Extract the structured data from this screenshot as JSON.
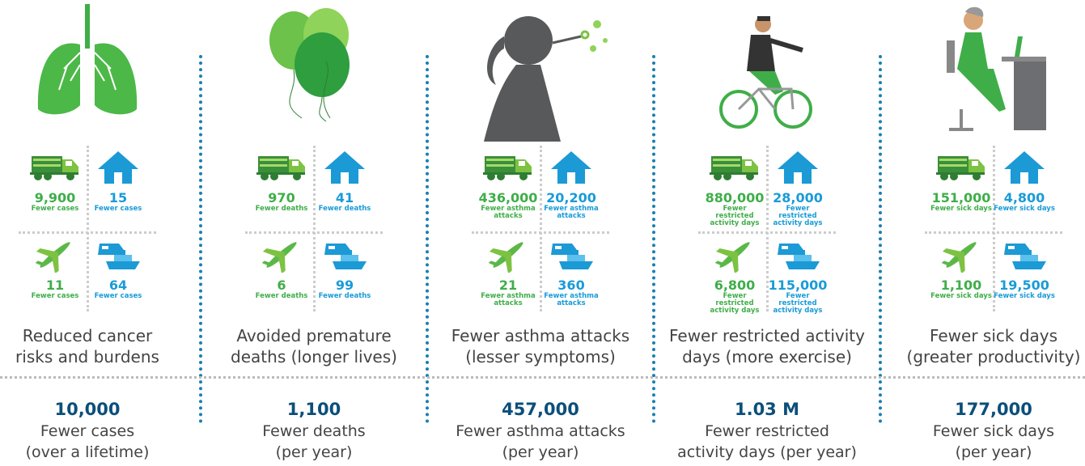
{
  "columns": [
    {
      "cells": [
        {
          "value": "9,900",
          "label": "Fewer cases"
        },
        {
          "value": "15",
          "label": "Fewer cases"
        },
        {
          "value": "11",
          "label": "Fewer cases"
        },
        {
          "value": "64",
          "label": "Fewer cases"
        }
      ],
      "description": [
        "Reduced cancer",
        "risks and burdens"
      ],
      "total": "10,000",
      "total_label": [
        "Fewer cases",
        "(over a lifetime)"
      ]
    },
    {
      "cells": [
        {
          "value": "970",
          "label": "Fewer deaths"
        },
        {
          "value": "41",
          "label": "Fewer deaths"
        },
        {
          "value": "6",
          "label": "Fewer deaths"
        },
        {
          "value": "99",
          "label": "Fewer deaths"
        }
      ],
      "description": [
        "Avoided premature",
        "deaths (longer lives)"
      ],
      "total": "1,100",
      "total_label": [
        "Fewer deaths",
        "(per year)"
      ]
    },
    {
      "cells": [
        {
          "value": "436,000",
          "label": "Fewer asthma attacks"
        },
        {
          "value": "20,200",
          "label": "Fewer asthma attacks"
        },
        {
          "value": "21",
          "label": "Fewer asthma attacks"
        },
        {
          "value": "360",
          "label": "Fewer asthma attacks"
        }
      ],
      "description": [
        "Fewer asthma attacks",
        "(lesser symptoms)"
      ],
      "total": "457,000",
      "total_label": [
        "Fewer asthma attacks",
        "(per year)"
      ]
    },
    {
      "cells": [
        {
          "value": "880,000",
          "label": "Fewer restricted activity days"
        },
        {
          "value": "28,000",
          "label": "Fewer restricted activity days"
        },
        {
          "value": "6,800",
          "label": "Fewer restricted activity days"
        },
        {
          "value": "115,000",
          "label": "Fewer restricted activity days"
        }
      ],
      "description": [
        "Fewer restricted activity",
        "days (more exercise)"
      ],
      "total": "1.03 M",
      "total_label": [
        "Fewer restricted",
        "activity days (per year)"
      ]
    },
    {
      "cells": [
        {
          "value": "151,000",
          "label": "Fewer sick days"
        },
        {
          "value": "4,800",
          "label": "Fewer sick days"
        },
        {
          "value": "1,100",
          "label": "Fewer sick days"
        },
        {
          "value": "19,500",
          "label": "Fewer sick days"
        }
      ],
      "description": [
        "Fewer sick days",
        "(greater productivity)"
      ],
      "total": "177,000",
      "total_label": [
        "Fewer sick days",
        "(per year)"
      ]
    }
  ]
}
